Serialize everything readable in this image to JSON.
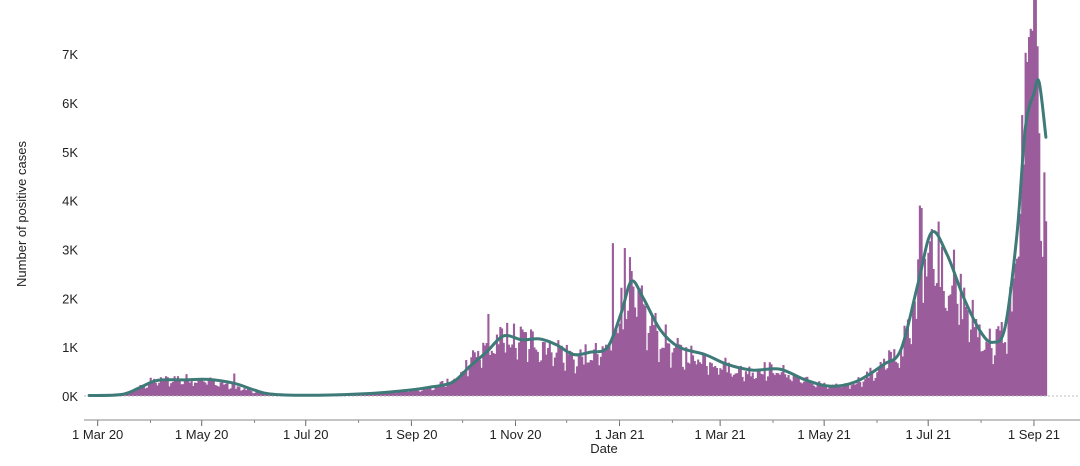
{
  "chart_data": {
    "type": "bar",
    "title": "",
    "xlabel": "Date",
    "ylabel": "Number of positive cases",
    "ylim": [
      0,
      7700
    ],
    "xlim": [
      "2020-02-22",
      "2021-09-28"
    ],
    "grid": false,
    "legend": "none",
    "colors": {
      "bars": "#9b5c9b",
      "line": "#3d7a78",
      "axis": "#888888"
    },
    "y_ticks": [
      {
        "value": 0,
        "label": "0K"
      },
      {
        "value": 1000,
        "label": "1K"
      },
      {
        "value": 2000,
        "label": "2K"
      },
      {
        "value": 3000,
        "label": "3K"
      },
      {
        "value": 4000,
        "label": "4K"
      },
      {
        "value": 5000,
        "label": "5K"
      },
      {
        "value": 6000,
        "label": "6K"
      },
      {
        "value": 7000,
        "label": "7K"
      }
    ],
    "x_ticks": [
      {
        "date": "2020-03-01",
        "label": "1 Mar 20"
      },
      {
        "date": "2020-05-01",
        "label": "1 May 20"
      },
      {
        "date": "2020-07-01",
        "label": "1 Jul 20"
      },
      {
        "date": "2020-09-01",
        "label": "1 Sep 20"
      },
      {
        "date": "2020-11-01",
        "label": "1 Nov 20"
      },
      {
        "date": "2021-01-01",
        "label": "1 Jan 21"
      },
      {
        "date": "2021-03-01",
        "label": "1 Mar 21"
      },
      {
        "date": "2021-05-01",
        "label": "1 May 21"
      },
      {
        "date": "2021-07-01",
        "label": "1 Jul 21"
      },
      {
        "date": "2021-09-01",
        "label": "1 Sep 21"
      }
    ],
    "series": [
      {
        "type": "bar",
        "x_start": "2020-02-25",
        "x_end": "2021-09-08",
        "key_points": [
          {
            "x": "2020-02-25",
            "y": 5
          },
          {
            "x": "2020-03-10",
            "y": 20
          },
          {
            "x": "2020-03-20",
            "y": 90
          },
          {
            "x": "2020-04-01",
            "y": 310
          },
          {
            "x": "2020-04-15",
            "y": 380
          },
          {
            "x": "2020-05-01",
            "y": 370
          },
          {
            "x": "2020-05-15",
            "y": 260
          },
          {
            "x": "2020-06-01",
            "y": 90
          },
          {
            "x": "2020-06-10",
            "y": 40
          },
          {
            "x": "2020-07-01",
            "y": 20
          },
          {
            "x": "2020-08-01",
            "y": 45
          },
          {
            "x": "2020-08-20",
            "y": 90
          },
          {
            "x": "2020-09-01",
            "y": 130
          },
          {
            "x": "2020-09-15",
            "y": 200
          },
          {
            "x": "2020-09-25",
            "y": 350
          },
          {
            "x": "2020-10-05",
            "y": 700
          },
          {
            "x": "2020-10-15",
            "y": 1050
          },
          {
            "x": "2020-10-25",
            "y": 1300
          },
          {
            "x": "2020-11-05",
            "y": 1230
          },
          {
            "x": "2020-11-15",
            "y": 1180
          },
          {
            "x": "2020-11-25",
            "y": 1050
          },
          {
            "x": "2020-12-05",
            "y": 850
          },
          {
            "x": "2020-12-15",
            "y": 880
          },
          {
            "x": "2020-12-25",
            "y": 1000
          },
          {
            "x": "2021-01-01",
            "y": 1850
          },
          {
            "x": "2021-01-07",
            "y": 2350
          },
          {
            "x": "2021-01-15",
            "y": 1800
          },
          {
            "x": "2021-01-25",
            "y": 1300
          },
          {
            "x": "2021-02-05",
            "y": 950
          },
          {
            "x": "2021-02-20",
            "y": 850
          },
          {
            "x": "2021-03-05",
            "y": 650
          },
          {
            "x": "2021-03-15",
            "y": 520
          },
          {
            "x": "2021-03-25",
            "y": 600
          },
          {
            "x": "2021-04-05",
            "y": 560
          },
          {
            "x": "2021-04-15",
            "y": 400
          },
          {
            "x": "2021-04-25",
            "y": 300
          },
          {
            "x": "2021-05-05",
            "y": 200
          },
          {
            "x": "2021-05-15",
            "y": 250
          },
          {
            "x": "2021-05-25",
            "y": 400
          },
          {
            "x": "2021-06-05",
            "y": 700
          },
          {
            "x": "2021-06-15",
            "y": 1000
          },
          {
            "x": "2021-06-22",
            "y": 1700
          },
          {
            "x": "2021-06-28",
            "y": 3000
          },
          {
            "x": "2021-07-03",
            "y": 3400
          },
          {
            "x": "2021-07-12",
            "y": 2800
          },
          {
            "x": "2021-07-22",
            "y": 2000
          },
          {
            "x": "2021-08-01",
            "y": 1350
          },
          {
            "x": "2021-08-08",
            "y": 1150
          },
          {
            "x": "2021-08-15",
            "y": 1400
          },
          {
            "x": "2021-08-20",
            "y": 2400
          },
          {
            "x": "2021-08-24",
            "y": 4500
          },
          {
            "x": "2021-08-28",
            "y": 6500
          },
          {
            "x": "2021-09-01",
            "y": 7100
          },
          {
            "x": "2021-09-04",
            "y": 6200
          },
          {
            "x": "2021-09-08",
            "y": 4000
          }
        ],
        "spikes": [
          {
            "x": "2020-05-20",
            "y": 460
          },
          {
            "x": "2020-10-16",
            "y": 1680
          },
          {
            "x": "2020-12-28",
            "y": 3130
          },
          {
            "x": "2021-01-04",
            "y": 3030
          },
          {
            "x": "2021-06-26",
            "y": 3900
          },
          {
            "x": "2021-06-27",
            "y": 3850
          },
          {
            "x": "2021-08-29",
            "y": 7350
          },
          {
            "x": "2021-08-30",
            "y": 7520
          },
          {
            "x": "2021-08-31",
            "y": 7480
          },
          {
            "x": "2021-09-07",
            "y": 4580
          }
        ]
      },
      {
        "type": "line",
        "points": [
          {
            "x": "2020-02-25",
            "y": 10
          },
          {
            "x": "2020-03-15",
            "y": 30
          },
          {
            "x": "2020-03-25",
            "y": 160
          },
          {
            "x": "2020-04-05",
            "y": 320
          },
          {
            "x": "2020-04-20",
            "y": 330
          },
          {
            "x": "2020-05-05",
            "y": 340
          },
          {
            "x": "2020-05-20",
            "y": 260
          },
          {
            "x": "2020-06-01",
            "y": 120
          },
          {
            "x": "2020-06-10",
            "y": 40
          },
          {
            "x": "2020-07-01",
            "y": 15
          },
          {
            "x": "2020-08-01",
            "y": 40
          },
          {
            "x": "2020-08-25",
            "y": 100
          },
          {
            "x": "2020-09-10",
            "y": 170
          },
          {
            "x": "2020-09-25",
            "y": 280
          },
          {
            "x": "2020-10-05",
            "y": 600
          },
          {
            "x": "2020-10-15",
            "y": 900
          },
          {
            "x": "2020-10-25",
            "y": 1230
          },
          {
            "x": "2020-11-05",
            "y": 1150
          },
          {
            "x": "2020-11-15",
            "y": 1170
          },
          {
            "x": "2020-11-25",
            "y": 1050
          },
          {
            "x": "2020-12-05",
            "y": 850
          },
          {
            "x": "2020-12-15",
            "y": 900
          },
          {
            "x": "2020-12-25",
            "y": 1000
          },
          {
            "x": "2021-01-02",
            "y": 1700
          },
          {
            "x": "2021-01-08",
            "y": 2350
          },
          {
            "x": "2021-01-15",
            "y": 2000
          },
          {
            "x": "2021-01-25",
            "y": 1350
          },
          {
            "x": "2021-02-05",
            "y": 1000
          },
          {
            "x": "2021-02-20",
            "y": 850
          },
          {
            "x": "2021-03-05",
            "y": 650
          },
          {
            "x": "2021-03-20",
            "y": 530
          },
          {
            "x": "2021-04-05",
            "y": 550
          },
          {
            "x": "2021-04-20",
            "y": 330
          },
          {
            "x": "2021-05-05",
            "y": 200
          },
          {
            "x": "2021-05-20",
            "y": 300
          },
          {
            "x": "2021-06-05",
            "y": 650
          },
          {
            "x": "2021-06-15",
            "y": 950
          },
          {
            "x": "2021-06-25",
            "y": 2300
          },
          {
            "x": "2021-07-03",
            "y": 3350
          },
          {
            "x": "2021-07-12",
            "y": 2900
          },
          {
            "x": "2021-07-22",
            "y": 2000
          },
          {
            "x": "2021-08-01",
            "y": 1300
          },
          {
            "x": "2021-08-08",
            "y": 1100
          },
          {
            "x": "2021-08-15",
            "y": 1400
          },
          {
            "x": "2021-08-22",
            "y": 3300
          },
          {
            "x": "2021-08-27",
            "y": 5500
          },
          {
            "x": "2021-09-01",
            "y": 6200
          },
          {
            "x": "2021-09-04",
            "y": 6430
          },
          {
            "x": "2021-09-08",
            "y": 5300
          }
        ]
      }
    ]
  }
}
